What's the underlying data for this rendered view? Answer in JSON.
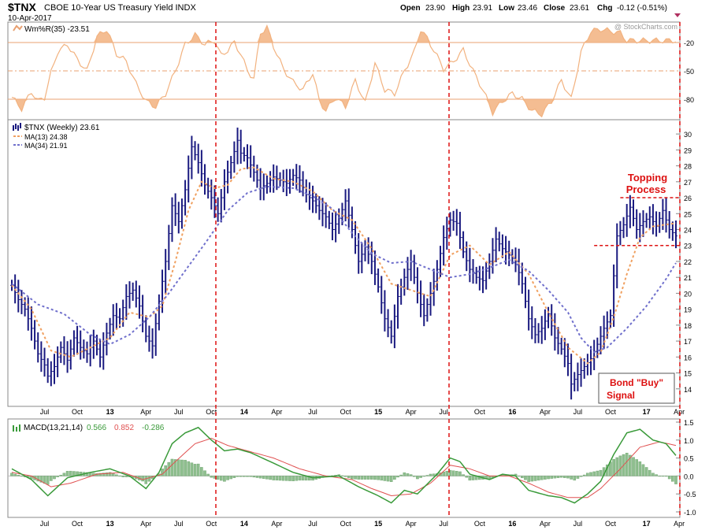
{
  "header": {
    "symbol": "$TNX",
    "name": "CBOE 10-Year US Treasury Yield INDX",
    "date": "10-Apr-2017",
    "open_label": "Open",
    "open": "23.90",
    "high_label": "High",
    "high": "23.91",
    "low_label": "Low",
    "low": "23.46",
    "close_label": "Close",
    "close": "23.61",
    "chg_label": "Chg",
    "chg": "-0.12 (-0.51%)",
    "watermark": "@ StockCharts.com"
  },
  "colors": {
    "price": "#1a1a80",
    "ma13": "#f0a060",
    "ma34": "#7070cc",
    "wmr": "#f2b27f",
    "wmr_line": "#e8a070",
    "macd": "#3a9a3a",
    "signal": "#e05050",
    "hist": "#8fbf8f",
    "annotation": "#dd1111"
  },
  "chart_data": [
    {
      "type": "area",
      "panel": "williams-%R",
      "legend": "Wm%R(35) -23.51",
      "yticks": [
        "-20",
        "-50",
        "-80"
      ],
      "ylim": [
        -100,
        0
      ],
      "reference_lines": [
        -20,
        -50,
        -80
      ],
      "anchors": [
        [
          0,
          -78
        ],
        [
          3,
          -90
        ],
        [
          6,
          -72
        ],
        [
          8,
          -82
        ],
        [
          10,
          -78
        ],
        [
          12,
          -52
        ],
        [
          14,
          -30
        ],
        [
          17,
          -22
        ],
        [
          20,
          -38
        ],
        [
          23,
          -50
        ],
        [
          26,
          -14
        ],
        [
          29,
          -6
        ],
        [
          32,
          -32
        ],
        [
          35,
          -40
        ],
        [
          38,
          -64
        ],
        [
          41,
          -82
        ],
        [
          44,
          -88
        ],
        [
          47,
          -74
        ],
        [
          50,
          -50
        ],
        [
          53,
          -22
        ],
        [
          56,
          -12
        ],
        [
          59,
          -22
        ],
        [
          62,
          -18
        ],
        [
          64,
          -34
        ],
        [
          66,
          -28
        ],
        [
          68,
          -20
        ],
        [
          70,
          -32
        ],
        [
          72,
          -50
        ],
        [
          74,
          -58
        ],
        [
          76,
          -10
        ],
        [
          78,
          -4
        ],
        [
          80,
          -24
        ],
        [
          83,
          -48
        ],
        [
          86,
          -62
        ],
        [
          89,
          -70
        ],
        [
          92,
          -52
        ],
        [
          94,
          -82
        ],
        [
          96,
          -92
        ],
        [
          99,
          -78
        ],
        [
          102,
          -88
        ],
        [
          105,
          -60
        ],
        [
          108,
          -84
        ],
        [
          111,
          -42
        ],
        [
          114,
          -70
        ],
        [
          117,
          -74
        ],
        [
          120,
          -50
        ],
        [
          123,
          -30
        ],
        [
          125,
          -6
        ],
        [
          127,
          -16
        ],
        [
          129,
          -28
        ],
        [
          132,
          -48
        ],
        [
          135,
          -40
        ],
        [
          138,
          -28
        ],
        [
          141,
          -50
        ],
        [
          144,
          -70
        ],
        [
          147,
          -94
        ],
        [
          150,
          -82
        ],
        [
          153,
          -74
        ],
        [
          156,
          -80
        ],
        [
          159,
          -92
        ],
        [
          162,
          -96
        ],
        [
          165,
          -82
        ],
        [
          168,
          -60
        ],
        [
          171,
          -80
        ],
        [
          174,
          -30
        ],
        [
          177,
          -8
        ],
        [
          180,
          -6
        ],
        [
          183,
          -8
        ],
        [
          186,
          -10
        ],
        [
          188,
          -18
        ]
      ]
    },
    {
      "type": "ohlc",
      "panel": "price",
      "legend": [
        "$TNX (Weekly) 23.61",
        "MA(13) 24.38",
        "MA(34) 21.91"
      ],
      "ylim": [
        13,
        30.6
      ],
      "yticks": [
        14,
        15,
        16,
        17,
        18,
        19,
        20,
        21,
        22,
        23,
        24,
        25,
        26,
        27,
        28,
        29,
        30
      ],
      "xticks": [
        "Jul",
        "Oct",
        "13",
        "Apr",
        "Jul",
        "Oct",
        "14",
        "Apr",
        "Jul",
        "Oct",
        "15",
        "Apr",
        "Jul",
        "Oct",
        "16",
        "Apr",
        "Jul",
        "Oct",
        "17",
        "Apr"
      ],
      "close_anchors": [
        [
          0,
          20.5
        ],
        [
          2,
          19.6
        ],
        [
          4,
          19.0
        ],
        [
          6,
          17.8
        ],
        [
          8,
          16.2
        ],
        [
          10,
          15.5
        ],
        [
          11,
          14.8
        ],
        [
          13,
          15.4
        ],
        [
          15,
          16.6
        ],
        [
          17,
          15.8
        ],
        [
          19,
          17.2
        ],
        [
          21,
          16.6
        ],
        [
          23,
          16.2
        ],
        [
          25,
          17.0
        ],
        [
          27,
          16.0
        ],
        [
          29,
          17.5
        ],
        [
          31,
          18.6
        ],
        [
          33,
          18.4
        ],
        [
          35,
          19.8
        ],
        [
          37,
          20.2
        ],
        [
          39,
          19.2
        ],
        [
          41,
          17.3
        ],
        [
          43,
          16.7
        ],
        [
          45,
          19.5
        ],
        [
          47,
          22.0
        ],
        [
          49,
          25.5
        ],
        [
          51,
          24.5
        ],
        [
          53,
          26.5
        ],
        [
          55,
          29.2
        ],
        [
          57,
          28.2
        ],
        [
          59,
          26.8
        ],
        [
          61,
          26.0
        ],
        [
          63,
          25.0
        ],
        [
          65,
          27.0
        ],
        [
          67,
          28.2
        ],
        [
          69,
          29.6
        ],
        [
          70,
          28.8
        ],
        [
          72,
          28.5
        ],
        [
          74,
          27.6
        ],
        [
          76,
          26.6
        ],
        [
          78,
          26.9
        ],
        [
          80,
          27.3
        ],
        [
          82,
          27.1
        ],
        [
          84,
          26.9
        ],
        [
          86,
          27.4
        ],
        [
          88,
          27.1
        ],
        [
          90,
          26.2
        ],
        [
          92,
          25.8
        ],
        [
          94,
          25.2
        ],
        [
          96,
          24.8
        ],
        [
          98,
          24.0
        ],
        [
          100,
          24.7
        ],
        [
          102,
          25.8
        ],
        [
          104,
          24.0
        ],
        [
          106,
          22.0
        ],
        [
          108,
          22.9
        ],
        [
          110,
          22.0
        ],
        [
          112,
          20.4
        ],
        [
          114,
          18.4
        ],
        [
          116,
          17.3
        ],
        [
          118,
          19.8
        ],
        [
          120,
          21.0
        ],
        [
          122,
          22.0
        ],
        [
          124,
          20.0
        ],
        [
          126,
          18.6
        ],
        [
          128,
          20.0
        ],
        [
          130,
          21.5
        ],
        [
          132,
          23.5
        ],
        [
          134,
          24.6
        ],
        [
          136,
          24.4
        ],
        [
          138,
          22.6
        ],
        [
          140,
          21.5
        ],
        [
          142,
          21.0
        ],
        [
          144,
          20.8
        ],
        [
          146,
          22.0
        ],
        [
          148,
          23.4
        ],
        [
          150,
          22.8
        ],
        [
          152,
          22.4
        ],
        [
          154,
          22.0
        ],
        [
          156,
          20.6
        ],
        [
          158,
          18.4
        ],
        [
          160,
          17.4
        ],
        [
          162,
          17.8
        ],
        [
          164,
          18.7
        ],
        [
          166,
          17.2
        ],
        [
          168,
          16.5
        ],
        [
          170,
          15.6
        ],
        [
          171,
          14.3
        ],
        [
          173,
          14.9
        ],
        [
          175,
          15.4
        ],
        [
          177,
          15.9
        ],
        [
          179,
          16.8
        ],
        [
          181,
          17.8
        ],
        [
          183,
          18.6
        ],
        [
          185,
          23.6
        ],
        [
          187,
          24.3
        ],
        [
          189,
          25.4
        ],
        [
          191,
          24.0
        ],
        [
          193,
          24.5
        ],
        [
          195,
          24.8
        ],
        [
          197,
          24.2
        ],
        [
          199,
          25.2
        ],
        [
          201,
          24.0
        ],
        [
          203,
          23.6
        ]
      ],
      "ma13_anchors": [
        [
          0,
          20.5
        ],
        [
          6,
          19.0
        ],
        [
          12,
          16.4
        ],
        [
          18,
          16.0
        ],
        [
          24,
          16.6
        ],
        [
          30,
          17.2
        ],
        [
          36,
          18.8
        ],
        [
          42,
          18.5
        ],
        [
          46,
          19.2
        ],
        [
          50,
          22.0
        ],
        [
          54,
          25.2
        ],
        [
          58,
          27.0
        ],
        [
          62,
          26.6
        ],
        [
          66,
          26.8
        ],
        [
          70,
          27.8
        ],
        [
          74,
          27.9
        ],
        [
          80,
          27.2
        ],
        [
          86,
          27.0
        ],
        [
          92,
          26.4
        ],
        [
          98,
          25.2
        ],
        [
          104,
          24.6
        ],
        [
          110,
          22.8
        ],
        [
          116,
          20.6
        ],
        [
          122,
          20.2
        ],
        [
          128,
          19.8
        ],
        [
          134,
          22.4
        ],
        [
          140,
          23.0
        ],
        [
          146,
          21.8
        ],
        [
          152,
          22.6
        ],
        [
          158,
          21.2
        ],
        [
          164,
          18.8
        ],
        [
          170,
          16.6
        ],
        [
          176,
          15.6
        ],
        [
          180,
          16.3
        ],
        [
          184,
          18.5
        ],
        [
          188,
          21.2
        ],
        [
          192,
          23.5
        ],
        [
          196,
          24.2
        ],
        [
          203,
          24.4
        ]
      ],
      "ma34_anchors": [
        [
          0,
          20.6
        ],
        [
          8,
          19.3
        ],
        [
          16,
          18.7
        ],
        [
          24,
          17.4
        ],
        [
          30,
          16.8
        ],
        [
          36,
          17.4
        ],
        [
          42,
          18.5
        ],
        [
          48,
          20.0
        ],
        [
          54,
          21.7
        ],
        [
          60,
          23.4
        ],
        [
          66,
          25.2
        ],
        [
          72,
          26.3
        ],
        [
          78,
          26.7
        ],
        [
          86,
          26.6
        ],
        [
          92,
          26.1
        ],
        [
          98,
          25.3
        ],
        [
          104,
          23.8
        ],
        [
          110,
          22.5
        ],
        [
          116,
          21.9
        ],
        [
          122,
          22.0
        ],
        [
          128,
          21.5
        ],
        [
          134,
          21.0
        ],
        [
          140,
          21.2
        ],
        [
          146,
          21.6
        ],
        [
          152,
          22.1
        ],
        [
          158,
          21.4
        ],
        [
          164,
          20.2
        ],
        [
          170,
          18.8
        ],
        [
          174,
          17.2
        ],
        [
          178,
          16.3
        ],
        [
          182,
          16.6
        ],
        [
          188,
          17.8
        ],
        [
          194,
          19.2
        ],
        [
          200,
          20.9
        ],
        [
          203,
          21.9
        ]
      ]
    },
    {
      "type": "line",
      "panel": "macd",
      "legend": "MACD(13,21,14)",
      "values": [
        "0.566",
        "0.852",
        "-0.286"
      ],
      "ylim": [
        -1.0,
        1.5
      ],
      "yticks": [
        "1.5",
        "1.0",
        "0.5",
        "0.0",
        "-0.5",
        "-1.0"
      ],
      "macd_anchors": [
        [
          0,
          0.2
        ],
        [
          6,
          -0.1
        ],
        [
          11,
          -0.55
        ],
        [
          17,
          -0.05
        ],
        [
          24,
          0.1
        ],
        [
          30,
          0.2
        ],
        [
          36,
          0.0
        ],
        [
          41,
          -0.35
        ],
        [
          45,
          0.1
        ],
        [
          49,
          0.9
        ],
        [
          53,
          1.2
        ],
        [
          57,
          1.35
        ],
        [
          61,
          1.0
        ],
        [
          65,
          0.7
        ],
        [
          69,
          0.75
        ],
        [
          73,
          0.65
        ],
        [
          79,
          0.4
        ],
        [
          86,
          0.1
        ],
        [
          92,
          -0.05
        ],
        [
          100,
          0.0
        ],
        [
          106,
          -0.3
        ],
        [
          112,
          -0.55
        ],
        [
          116,
          -0.75
        ],
        [
          120,
          -0.4
        ],
        [
          124,
          -0.5
        ],
        [
          130,
          0.05
        ],
        [
          134,
          0.5
        ],
        [
          137,
          0.4
        ],
        [
          140,
          0.05
        ],
        [
          146,
          -0.1
        ],
        [
          150,
          0.05
        ],
        [
          154,
          0.0
        ],
        [
          158,
          -0.4
        ],
        [
          164,
          -0.55
        ],
        [
          168,
          -0.6
        ],
        [
          172,
          -0.75
        ],
        [
          176,
          -0.5
        ],
        [
          180,
          -0.15
        ],
        [
          184,
          0.6
        ],
        [
          188,
          1.2
        ],
        [
          192,
          1.3
        ],
        [
          196,
          1.0
        ],
        [
          200,
          0.9
        ],
        [
          203,
          0.57
        ]
      ],
      "signal_anchors": [
        [
          0,
          0.1
        ],
        [
          6,
          0.0
        ],
        [
          12,
          -0.3
        ],
        [
          18,
          -0.2
        ],
        [
          26,
          0.05
        ],
        [
          34,
          0.1
        ],
        [
          40,
          -0.1
        ],
        [
          46,
          0.05
        ],
        [
          50,
          0.4
        ],
        [
          56,
          0.9
        ],
        [
          61,
          1.05
        ],
        [
          66,
          0.85
        ],
        [
          72,
          0.7
        ],
        [
          80,
          0.5
        ],
        [
          88,
          0.2
        ],
        [
          96,
          0.0
        ],
        [
          104,
          -0.1
        ],
        [
          110,
          -0.35
        ],
        [
          116,
          -0.55
        ],
        [
          122,
          -0.5
        ],
        [
          128,
          -0.2
        ],
        [
          134,
          0.3
        ],
        [
          140,
          0.2
        ],
        [
          146,
          0.0
        ],
        [
          152,
          0.0
        ],
        [
          158,
          -0.2
        ],
        [
          164,
          -0.45
        ],
        [
          170,
          -0.6
        ],
        [
          176,
          -0.6
        ],
        [
          180,
          -0.35
        ],
        [
          186,
          0.2
        ],
        [
          192,
          0.8
        ],
        [
          198,
          0.95
        ],
        [
          203,
          0.85
        ]
      ]
    }
  ],
  "annotations": {
    "topping_line1": "Topping",
    "topping_line2": "Process",
    "bond_line1": "Bond \"Buy\"",
    "bond_line2": "Signal"
  }
}
